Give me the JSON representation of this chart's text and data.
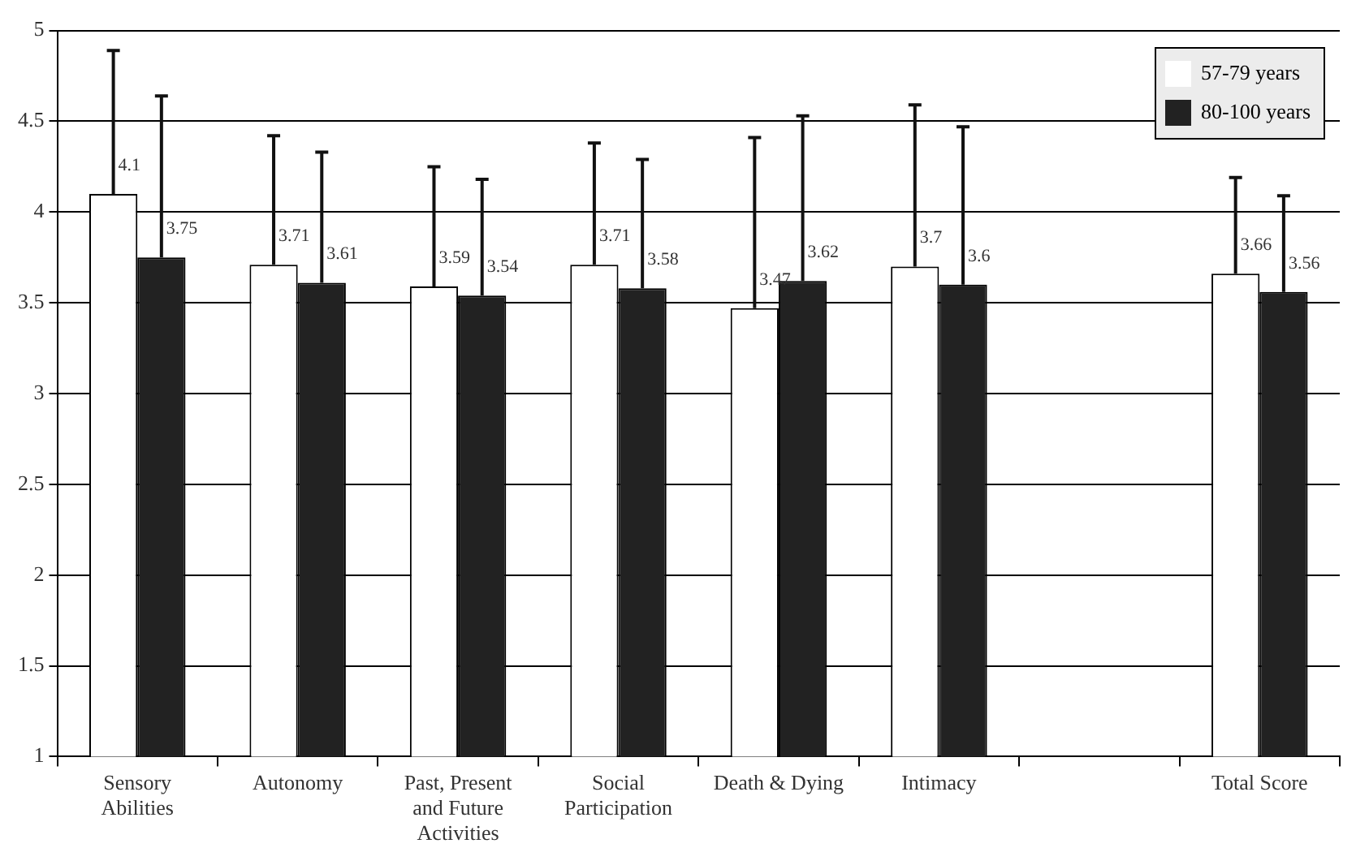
{
  "chart_data": {
    "type": "bar",
    "categories": [
      "Sensory Abilities",
      "Autonomy",
      "Past, Present and Future Activities",
      "Social Participation",
      "Death & Dying",
      "Intimacy",
      null,
      "Total Score"
    ],
    "series": [
      {
        "name": "57-79 years",
        "color": "#ffffff",
        "values": [
          4.1,
          3.71,
          3.59,
          3.71,
          3.47,
          3.7,
          null,
          3.66
        ],
        "errors": [
          [
            4.1,
            4.89
          ],
          [
            3.71,
            4.42
          ],
          [
            3.59,
            4.25
          ],
          [
            3.71,
            4.38
          ],
          [
            3.47,
            4.41
          ],
          [
            3.7,
            4.59
          ],
          null,
          [
            3.66,
            4.19
          ]
        ]
      },
      {
        "name": "80-100 years",
        "color": "#222222",
        "values": [
          3.75,
          3.61,
          3.54,
          3.58,
          3.62,
          3.6,
          null,
          3.56
        ],
        "errors": [
          [
            3.75,
            4.64
          ],
          [
            3.61,
            4.33
          ],
          [
            3.54,
            4.18
          ],
          [
            3.58,
            4.29
          ],
          [
            3.62,
            4.53
          ],
          [
            3.6,
            4.47
          ],
          null,
          [
            3.56,
            4.09
          ]
        ]
      }
    ],
    "ylim": [
      1,
      5
    ],
    "yticks": [
      1,
      1.5,
      2,
      2.5,
      3,
      3.5,
      4,
      4.5,
      5
    ],
    "grid": "y",
    "legend": "top right",
    "data_labels": true
  }
}
